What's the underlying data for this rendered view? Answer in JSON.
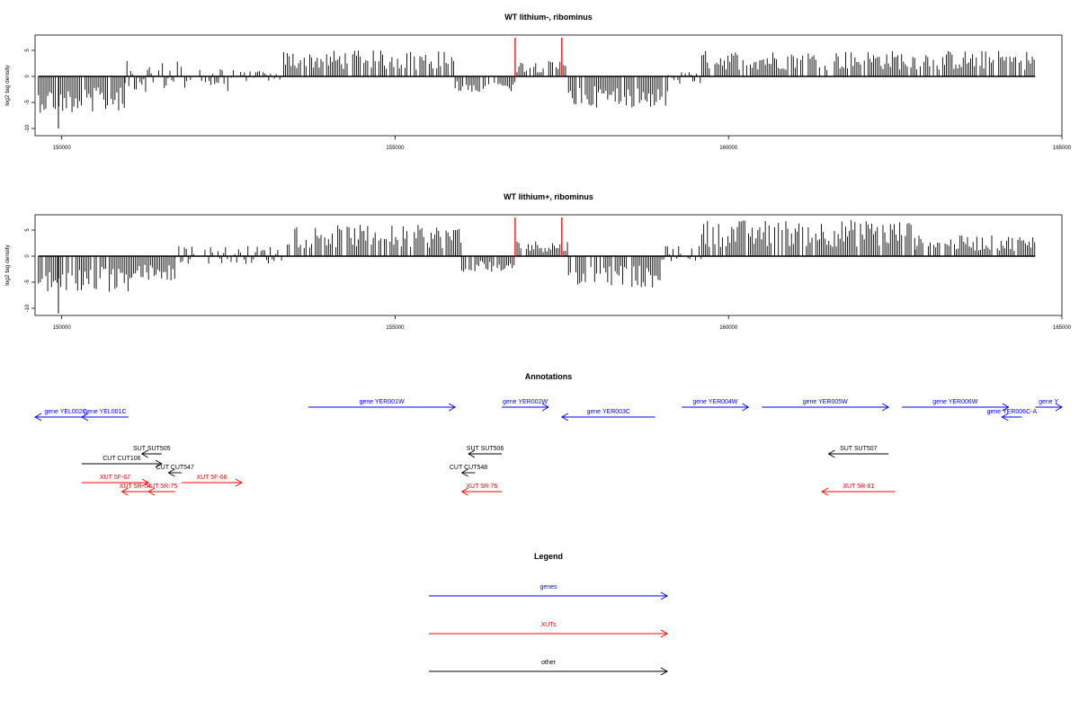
{
  "colors": {
    "gene": "#0000ff",
    "xut": "#ff0000",
    "other": "#000000",
    "marker": "#ff0000",
    "data": "#000000"
  },
  "chart_data": [
    {
      "type": "bar",
      "title": "WT lithium-, ribominus",
      "ylabel": "log2 tag density",
      "xlim": [
        149600,
        165000
      ],
      "ylim": [
        -10,
        5
      ],
      "xticks": [
        "150000",
        "155000",
        "160000",
        "165000"
      ],
      "yticks": [
        "-10",
        "-5",
        "0",
        "5"
      ],
      "grid": false,
      "markers_x": [
        156800,
        157500
      ],
      "segments": [
        {
          "from": 149650,
          "to": 150950,
          "min": -7,
          "max": 2,
          "peak": -10,
          "peak_x": 149950
        },
        {
          "from": 150950,
          "to": 152600,
          "min": -3,
          "max": 3
        },
        {
          "from": 152600,
          "to": 153300,
          "min": -1,
          "max": 1
        },
        {
          "from": 153300,
          "to": 155900,
          "min": -1,
          "max": 5
        },
        {
          "from": 155900,
          "to": 156800,
          "min": -3,
          "max": 2
        },
        {
          "from": 156800,
          "to": 157600,
          "min": -0.5,
          "max": 3
        },
        {
          "from": 157600,
          "to": 159100,
          "min": -6,
          "max": 1
        },
        {
          "from": 159100,
          "to": 159600,
          "min": -2,
          "max": 1
        },
        {
          "from": 159600,
          "to": 164600,
          "min": -1.5,
          "max": 5
        }
      ]
    },
    {
      "type": "bar",
      "title": "WT lithium+, ribominus",
      "ylabel": "log2 tag density",
      "xlim": [
        149600,
        165000
      ],
      "ylim": [
        -10,
        5
      ],
      "xticks": [
        "150000",
        "155000",
        "160000",
        "165000"
      ],
      "yticks": [
        "-10",
        "-5",
        "0",
        "5"
      ],
      "grid": false,
      "markers_x": [
        156800,
        157500
      ],
      "segments": [
        {
          "from": 149650,
          "to": 151050,
          "min": -7,
          "max": 2,
          "peak": -11,
          "peak_x": 149950
        },
        {
          "from": 151050,
          "to": 151700,
          "min": -5,
          "max": 2
        },
        {
          "from": 151700,
          "to": 153300,
          "min": -1.5,
          "max": 2
        },
        {
          "from": 153300,
          "to": 156000,
          "min": -1,
          "max": 6
        },
        {
          "from": 156000,
          "to": 156800,
          "min": -3,
          "max": 2
        },
        {
          "from": 156800,
          "to": 157600,
          "min": -0.5,
          "max": 3
        },
        {
          "from": 157600,
          "to": 159000,
          "min": -6,
          "max": 1
        },
        {
          "from": 159000,
          "to": 159600,
          "min": -1,
          "max": 2
        },
        {
          "from": 159600,
          "to": 162800,
          "min": -1,
          "max": 7
        },
        {
          "from": 162800,
          "to": 164600,
          "min": -1,
          "max": 4
        }
      ]
    }
  ],
  "annotations": {
    "title": "Annotations",
    "items": [
      {
        "label": "gene YEL002C",
        "kind": "gene",
        "x1": 149600,
        "x2": 149600,
        "dir": "left",
        "row": 1
      },
      {
        "label": "gene YEL001C",
        "kind": "gene",
        "x1": 150300,
        "x2": 151000,
        "dir": "left",
        "row": 1
      },
      {
        "label": "gene YER001W",
        "kind": "gene",
        "x1": 153700,
        "x2": 155900,
        "dir": "right",
        "row": 0
      },
      {
        "label": "gene YER002W",
        "kind": "gene",
        "x1": 156600,
        "x2": 157300,
        "dir": "right",
        "row": 0
      },
      {
        "label": "gene YER003C",
        "kind": "gene",
        "x1": 157500,
        "x2": 158900,
        "dir": "left",
        "row": 1
      },
      {
        "label": "gene YER004W",
        "kind": "gene",
        "x1": 159300,
        "x2": 160300,
        "dir": "right",
        "row": 0
      },
      {
        "label": "gene YER005W",
        "kind": "gene",
        "x1": 160500,
        "x2": 162400,
        "dir": "right",
        "row": 0
      },
      {
        "label": "gene YER006W",
        "kind": "gene",
        "x1": 162600,
        "x2": 164200,
        "dir": "right",
        "row": 0
      },
      {
        "label": "gene YER006C-A",
        "kind": "gene",
        "x1": 164100,
        "x2": 164400,
        "dir": "left",
        "row": 1
      },
      {
        "label": "gene Y",
        "kind": "gene",
        "x1": 164600,
        "x2": 165000,
        "dir": "right",
        "row": 0
      },
      {
        "label": "SUT SUT505",
        "kind": "other",
        "x1": 151200,
        "x2": 151500,
        "dir": "left",
        "row": 2
      },
      {
        "label": "CUT CUT106",
        "kind": "other",
        "x1": 150300,
        "x2": 151500,
        "dir": "right",
        "row": 3
      },
      {
        "label": "CUT CUT547",
        "kind": "other",
        "x1": 151600,
        "x2": 151800,
        "dir": "left",
        "row": 4
      },
      {
        "label": "XUT 5F-67",
        "kind": "xut",
        "x1": 150300,
        "x2": 151300,
        "dir": "right",
        "row": 5
      },
      {
        "label": "XUT 5R-74",
        "kind": "xut",
        "x1": 150900,
        "x2": 151300,
        "dir": "left",
        "row": 6
      },
      {
        "label": "XUT 5R-75",
        "kind": "xut",
        "x1": 151300,
        "x2": 151700,
        "dir": "left",
        "row": 6
      },
      {
        "label": "XUT 5F-68",
        "kind": "xut",
        "x1": 151800,
        "x2": 152700,
        "dir": "right",
        "row": 5
      },
      {
        "label": "SUT SUT506",
        "kind": "other",
        "x1": 156100,
        "x2": 156600,
        "dir": "left",
        "row": 2
      },
      {
        "label": "CUT CUT548",
        "kind": "other",
        "x1": 156000,
        "x2": 156200,
        "dir": "left",
        "row": 4
      },
      {
        "label": "XUT 5R-76",
        "kind": "xut",
        "x1": 156000,
        "x2": 156600,
        "dir": "left",
        "row": 6
      },
      {
        "label": "SUT SUT507",
        "kind": "other",
        "x1": 161500,
        "x2": 162400,
        "dir": "left",
        "row": 2
      },
      {
        "label": "XUT 5R-81",
        "kind": "xut",
        "x1": 161400,
        "x2": 162500,
        "dir": "left",
        "row": 6
      }
    ]
  },
  "legend": {
    "title": "Legend",
    "items": [
      {
        "label": "genes",
        "kind": "gene"
      },
      {
        "label": "XUTs",
        "kind": "xut"
      },
      {
        "label": "other",
        "kind": "other"
      }
    ]
  }
}
